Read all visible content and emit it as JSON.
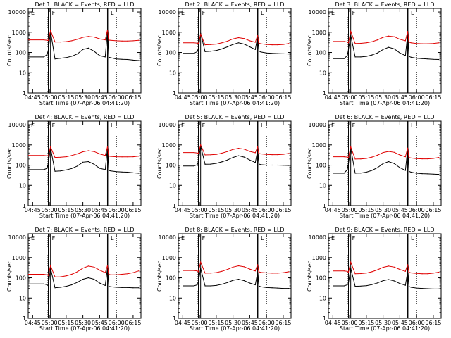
{
  "panel_titles": [
    "Det 1: BLACK = Events, RED = LLD",
    "Det 2: BLACK = Events, RED = LLD",
    "Det 3: BLACK = Events, RED = LLD",
    "Det 4: BLACK = Events, RED = LLD",
    "Det 5: BLACK = Events, RED = LLD",
    "Det 6: BLACK = Events, RED = LLD",
    "Det 7: BLACK = Events, RED = LLD",
    "Det 8: BLACK = Events, RED = LLD",
    "Det 9: BLACK = Events, RED = LLD"
  ],
  "xlabel": "Start Time (07-Apr-06 04:41:20)",
  "ylabel": "Counts/sec",
  "xtick_labels": [
    "04:45",
    "05:00",
    "05:15",
    "05:30",
    "05:45",
    "06:00",
    "06:15"
  ],
  "ytick_labels": [
    "1",
    "10",
    "100",
    "1000",
    "10000"
  ],
  "flag_labels": [
    "E",
    "F",
    "L"
  ],
  "colors": {
    "events": "#000000",
    "lld": "#e00000",
    "axes": "#000000"
  },
  "chart_data": {
    "type": "line",
    "layout": "3x3 grid of small multiples, one per detector",
    "xlabel": "Start Time (07-Apr-06 04:41:20)",
    "ylabel": "Counts/sec",
    "xaxis": "time of day",
    "xlim": [
      "04:41",
      "06:22"
    ],
    "ylim": [
      1,
      15000
    ],
    "yscale": "log",
    "xticks": [
      "04:45",
      "05:00",
      "05:15",
      "05:30",
      "05:45",
      "06:00",
      "06:15"
    ],
    "yticks": [
      1,
      10,
      100,
      1000,
      10000
    ],
    "solid_vlines": [
      "04:59",
      "05:01",
      "05:52",
      "05:53"
    ],
    "dotted_vlines": [
      "04:58",
      "06:00"
    ],
    "x": [
      "04:55",
      "04:58",
      "04:59",
      "05:01",
      "05:05",
      "05:10",
      "05:15",
      "05:20",
      "05:25",
      "05:30",
      "05:35",
      "05:40",
      "05:45",
      "05:50",
      "05:52",
      "05:53",
      "05:55",
      "06:00",
      "06:05",
      "06:10",
      "06:15",
      "06:20"
    ],
    "panels": [
      {
        "detector": 1,
        "x_start": "04:41",
        "series": [
          {
            "name": "Events",
            "values": [
              60,
              80,
              130,
              1100,
              48,
              52,
              56,
              65,
              85,
              140,
              165,
              115,
              70,
              60,
              1200,
              58,
              55,
              48,
              46,
              45,
              42,
              40
            ]
          },
          {
            "name": "LLD",
            "values": [
              420,
              400,
              390,
              1200,
              330,
              330,
              345,
              380,
              450,
              560,
              620,
              580,
              470,
              420,
              1300,
              410,
              400,
              380,
              370,
              370,
              380,
              400
            ]
          }
        ]
      },
      {
        "detector": 2,
        "x_start": "04:45",
        "series": [
          {
            "name": "Events",
            "values": [
              90,
              110,
              160,
              900,
              110,
              115,
              125,
              150,
              190,
              250,
              300,
              260,
              190,
              140,
              600,
              120,
              105,
              95,
              90,
              88,
              86,
              85
            ]
          },
          {
            "name": "LLD",
            "values": [
              300,
              290,
              280,
              800,
              240,
              245,
              260,
              300,
              360,
              470,
              540,
              490,
              380,
              320,
              700,
              290,
              270,
              250,
              240,
              240,
              250,
              280
            ]
          }
        ]
      },
      {
        "detector": 3,
        "x_start": "04:45",
        "series": [
          {
            "name": "Events",
            "values": [
              50,
              70,
              140,
              700,
              60,
              60,
              64,
              75,
              95,
              140,
              180,
              150,
              95,
              70,
              800,
              65,
              58,
              52,
              50,
              48,
              46,
              45
            ]
          },
          {
            "name": "LLD",
            "values": [
              350,
              330,
              300,
              1100,
              280,
              285,
              300,
              340,
              420,
              560,
              650,
              600,
              450,
              380,
              1100,
              330,
              300,
              280,
              270,
              270,
              280,
              300
            ]
          }
        ]
      },
      {
        "detector": 4,
        "x_start": "04:41",
        "series": [
          {
            "name": "Events",
            "values": [
              60,
              70,
              120,
              700,
              50,
              52,
              58,
              68,
              90,
              140,
              150,
              110,
              70,
              60,
              700,
              55,
              52,
              48,
              46,
              45,
              42,
              40
            ]
          },
          {
            "name": "LLD",
            "values": [
              300,
              290,
              280,
              800,
              240,
              245,
              260,
              300,
              360,
              460,
              520,
              470,
              360,
              300,
              800,
              280,
              270,
              260,
              255,
              255,
              260,
              280
            ]
          }
        ]
      },
      {
        "detector": 5,
        "x_start": "04:45",
        "series": [
          {
            "name": "Events",
            "values": [
              90,
              105,
              150,
              900,
              110,
              112,
              122,
              145,
              180,
              240,
              290,
              250,
              180,
              135,
              500,
              115,
              105,
              100,
              100,
              100,
              98,
              96
            ]
          },
          {
            "name": "LLD",
            "values": [
              420,
              400,
              380,
              1000,
              320,
              325,
              340,
              390,
              470,
              600,
              680,
              620,
              480,
              410,
              800,
              380,
              360,
              340,
              330,
              330,
              345,
              380
            ]
          }
        ]
      },
      {
        "detector": 6,
        "x_start": "04:45",
        "series": [
          {
            "name": "Events",
            "values": [
              40,
              60,
              120,
              700,
              40,
              41,
              45,
              55,
              75,
              120,
              150,
              120,
              75,
              55,
              600,
              50,
              45,
              40,
              38,
              37,
              36,
              35
            ]
          },
          {
            "name": "LLD",
            "values": [
              260,
              250,
              240,
              800,
              200,
              203,
              215,
              250,
              310,
              420,
              480,
              430,
              320,
              260,
              700,
              240,
              225,
              210,
              205,
              205,
              215,
              240
            ]
          }
        ]
      },
      {
        "detector": 7,
        "x_start": "04:41",
        "series": [
          {
            "name": "Events",
            "values": [
              50,
              45,
              40,
              300,
              32,
              34,
              38,
              45,
              60,
              85,
              100,
              85,
              55,
              42,
              300,
              38,
              36,
              34,
              33,
              33,
              32,
              32
            ]
          },
          {
            "name": "LLD",
            "values": [
              150,
              140,
              130,
              400,
              110,
              112,
              125,
              150,
              200,
              300,
              380,
              340,
              240,
              180,
              400,
              150,
              140,
              140,
              150,
              160,
              180,
              220
            ]
          }
        ]
      },
      {
        "detector": 8,
        "x_start": "04:45",
        "series": [
          {
            "name": "Events",
            "values": [
              40,
              45,
              60,
              300,
              40,
              40,
              42,
              48,
              58,
              75,
              85,
              72,
              55,
              45,
              180,
              40,
              36,
              33,
              32,
              31,
              30,
              30
            ]
          },
          {
            "name": "LLD",
            "values": [
              230,
              220,
              200,
              600,
              170,
              172,
              182,
              210,
              260,
              340,
              390,
              350,
              270,
              220,
              450,
              200,
              185,
              175,
              170,
              170,
              180,
              200
            ]
          }
        ]
      },
      {
        "detector": 9,
        "x_start": "04:45",
        "series": [
          {
            "name": "Events",
            "values": [
              40,
              45,
              55,
              300,
              38,
              39,
              41,
              46,
              56,
              72,
              82,
              70,
              52,
              43,
              200,
              38,
              34,
              31,
              30,
              29,
              28,
              28
            ]
          },
          {
            "name": "LLD",
            "values": [
              220,
              210,
              190,
              600,
              160,
              162,
              172,
              200,
              250,
              330,
              380,
              340,
              260,
              210,
              450,
              190,
              175,
              165,
              160,
              160,
              170,
              190
            ]
          }
        ]
      }
    ]
  }
}
